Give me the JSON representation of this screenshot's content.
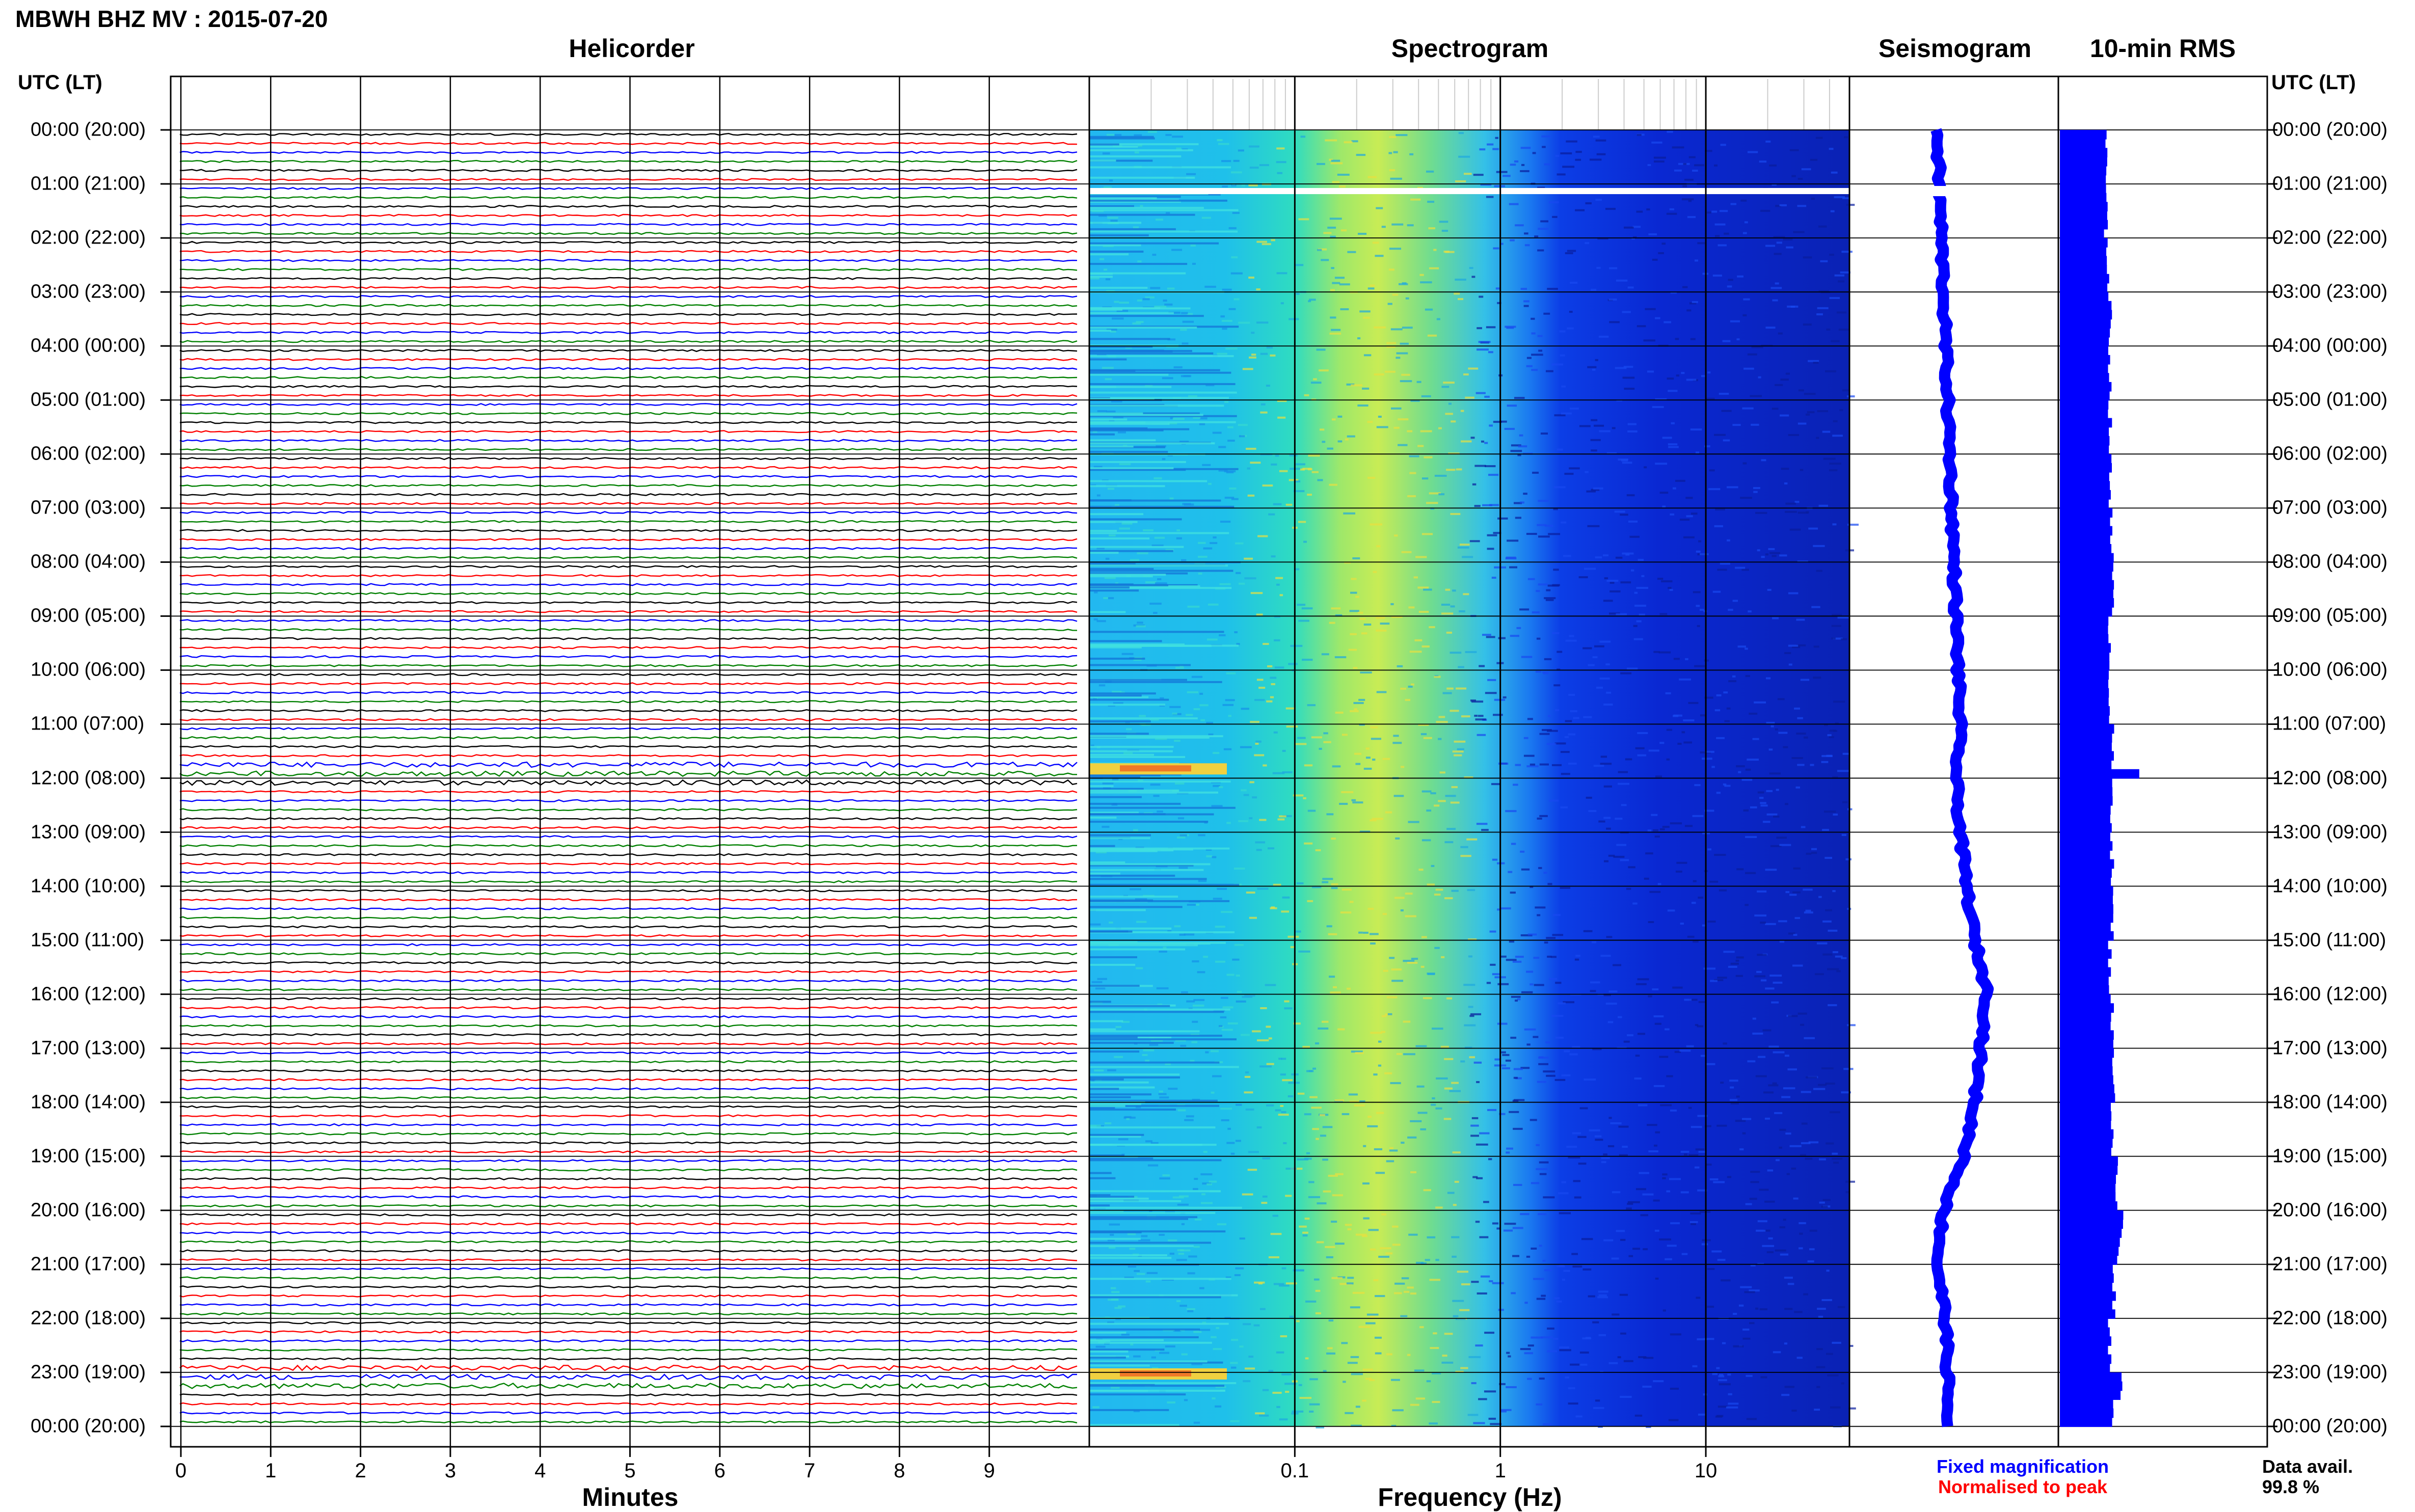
{
  "header": {
    "title": "MBWH BHZ MV : 2015-07-20",
    "utc_left": "UTC (LT)",
    "utc_right": "UTC (LT)"
  },
  "panels": {
    "helicorder": "Helicorder",
    "spectrogram": "Spectrogram",
    "seismogram": "Seismogram",
    "rms": "10-min RMS"
  },
  "axes": {
    "helicorder_xlabel": "Minutes",
    "spectrogram_xlabel": "Frequency (Hz)"
  },
  "legend": {
    "fixed": "Fixed magnification",
    "normalised": "Normalised to peak",
    "fixed_color": "#0000ff",
    "normalised_color": "#ff0000"
  },
  "availability": {
    "label": "Data avail.",
    "value": "99.8 %"
  },
  "chart_data": [
    {
      "type": "line",
      "name": "helicorder",
      "xlabel": "Minutes",
      "xlim": [
        0,
        10
      ],
      "x_ticks": [
        "0",
        "1",
        "2",
        "3",
        "4",
        "5",
        "6",
        "7",
        "8",
        "9"
      ],
      "trace_colors": [
        "#000000",
        "#ff0000",
        "#0000ff",
        "#008000"
      ],
      "hour_labels": [
        "00:00 (20:00)",
        "01:00 (21:00)",
        "02:00 (22:00)",
        "03:00 (23:00)",
        "04:00 (00:00)",
        "05:00 (01:00)",
        "06:00 (02:00)",
        "07:00 (03:00)",
        "08:00 (04:00)",
        "09:00 (05:00)",
        "10:00 (06:00)",
        "11:00 (07:00)",
        "12:00 (08:00)",
        "13:00 (09:00)",
        "14:00 (10:00)",
        "15:00 (11:00)",
        "16:00 (12:00)",
        "17:00 (13:00)",
        "18:00 (14:00)",
        "19:00 (15:00)",
        "20:00 (16:00)",
        "21:00 (17:00)",
        "22:00 (18:00)",
        "23:00 (19:00)",
        "00:00 (20:00)"
      ],
      "lines_per_hour": 6,
      "gap_hours": [
        1.0
      ],
      "events_hours": [
        11.8,
        23.0
      ]
    },
    {
      "type": "heatmap",
      "name": "spectrogram",
      "xlabel": "Frequency (Hz)",
      "xscale": "log",
      "xlim": [
        0.01,
        50
      ],
      "x_ticks": [
        "0.1",
        "1",
        "10"
      ],
      "gap_hours": [
        1.0
      ],
      "events_hours": [
        11.8,
        23.0
      ]
    },
    {
      "type": "line",
      "name": "seismogram",
      "hours": [
        0,
        1,
        2,
        3,
        4,
        5,
        6,
        7,
        8,
        9,
        10,
        11,
        12,
        13,
        14,
        15,
        16,
        17,
        18,
        19,
        20,
        21,
        22,
        23,
        24
      ],
      "values": [
        0.42,
        0.43,
        0.44,
        0.45,
        0.46,
        0.47,
        0.48,
        0.49,
        0.5,
        0.51,
        0.52,
        0.53,
        0.51,
        0.53,
        0.56,
        0.6,
        0.66,
        0.63,
        0.6,
        0.55,
        0.45,
        0.42,
        0.46,
        0.47,
        0.47
      ]
    },
    {
      "type": "bar",
      "name": "10-min RMS",
      "hours": [
        0,
        1,
        2,
        3,
        4,
        5,
        6,
        7,
        8,
        9,
        10,
        11,
        11.83,
        12,
        13,
        14,
        15,
        16,
        17,
        18,
        19,
        20,
        20.5,
        21,
        22,
        23,
        23.5
      ],
      "values": [
        0.22,
        0.22,
        0.23,
        0.24,
        0.24,
        0.24,
        0.24,
        0.25,
        0.25,
        0.24,
        0.24,
        0.25,
        0.38,
        0.25,
        0.25,
        0.25,
        0.24,
        0.25,
        0.26,
        0.25,
        0.27,
        0.3,
        0.28,
        0.26,
        0.24,
        0.3,
        0.25
      ]
    }
  ]
}
